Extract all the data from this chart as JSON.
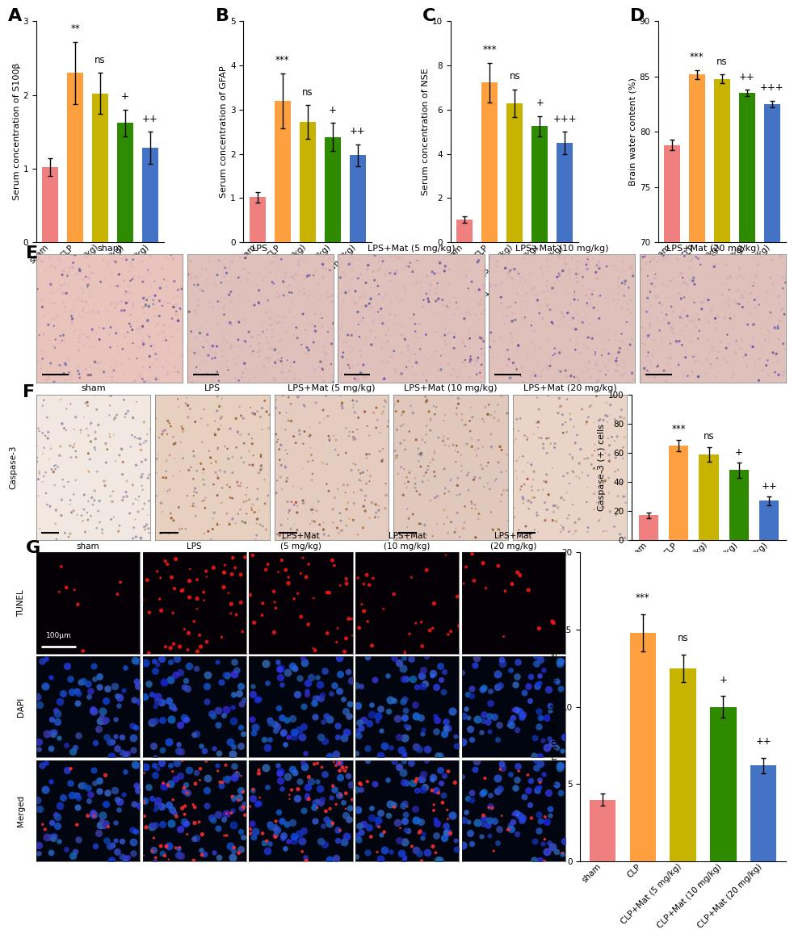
{
  "bar_colors": [
    "#F08080",
    "#FFA040",
    "#C8B400",
    "#2E8B00",
    "#4472C4"
  ],
  "categories": [
    "sham",
    "CLP",
    "CLP+Mat (5 mg/kg)",
    "CLP+Mat (10 mg/kg)",
    "CLP+Mat (20 mg/kg)"
  ],
  "A_values": [
    1.02,
    2.3,
    2.02,
    1.62,
    1.28
  ],
  "A_errors": [
    0.12,
    0.42,
    0.28,
    0.18,
    0.22
  ],
  "A_ylabel": "Serum concentration of S100β",
  "A_ylim": [
    0,
    3
  ],
  "A_yticks": [
    0,
    1,
    2,
    3
  ],
  "A_sig": [
    "**",
    "ns",
    "+",
    "++"
  ],
  "B_values": [
    1.02,
    3.2,
    2.72,
    2.38,
    1.97
  ],
  "B_errors": [
    0.12,
    0.62,
    0.38,
    0.32,
    0.25
  ],
  "B_ylabel": "Serum concentration of GFAP",
  "B_ylim": [
    0,
    5
  ],
  "B_yticks": [
    0,
    1,
    2,
    3,
    4,
    5
  ],
  "B_sig": [
    "***",
    "ns",
    "+",
    "++"
  ],
  "C_values": [
    1.02,
    7.22,
    6.3,
    5.25,
    4.5
  ],
  "C_errors": [
    0.15,
    0.9,
    0.62,
    0.45,
    0.5
  ],
  "C_ylabel": "Serum concentration of NSE",
  "C_ylim": [
    0,
    10
  ],
  "C_yticks": [
    0,
    2,
    4,
    6,
    8,
    10
  ],
  "C_sig": [
    "***",
    "ns",
    "+",
    "+++"
  ],
  "D_values": [
    78.8,
    85.2,
    84.8,
    83.5,
    82.5
  ],
  "D_errors": [
    0.5,
    0.4,
    0.4,
    0.3,
    0.3
  ],
  "D_ylabel": "Brain water content (%)",
  "D_ylim": [
    70,
    90
  ],
  "D_yticks": [
    70,
    75,
    80,
    85,
    90
  ],
  "D_sig": [
    "***",
    "ns",
    "++",
    "+++"
  ],
  "F_values": [
    17,
    65,
    59,
    48,
    27
  ],
  "F_errors": [
    2,
    4,
    5,
    5,
    3
  ],
  "F_ylabel": "Caspase-3 (+) cells",
  "F_ylim": [
    0,
    100
  ],
  "F_yticks": [
    0,
    20,
    40,
    60,
    80,
    100
  ],
  "F_sig": [
    "***",
    "ns",
    "+",
    "++"
  ],
  "G_values": [
    4.0,
    14.8,
    12.5,
    10.0,
    6.2
  ],
  "G_errors": [
    0.4,
    1.2,
    0.9,
    0.7,
    0.5
  ],
  "G_ylabel": "Percentage of TUNEL-positive cells",
  "G_ylim": [
    0,
    20
  ],
  "G_yticks": [
    0,
    5,
    10,
    15,
    20
  ],
  "G_sig": [
    "***",
    "ns",
    "+",
    "++"
  ],
  "panel_label_fontsize": 16,
  "axis_label_fontsize": 8,
  "tick_fontsize": 7.5,
  "sig_fontsize": 8.5,
  "bar_width": 0.65,
  "capsize": 2.5,
  "error_linewidth": 1.0,
  "figure_bg": "#FFFFFF"
}
